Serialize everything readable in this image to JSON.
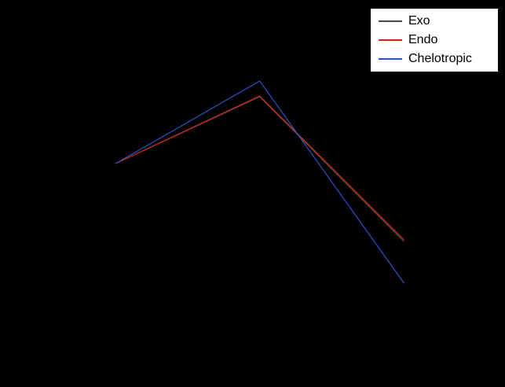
{
  "window": {
    "background": "#000000"
  },
  "legend": {
    "background": "#ffffff",
    "border_color": "#000000",
    "text_color": "#000000",
    "position": "top-right"
  },
  "chart_data": {
    "type": "line",
    "title": "",
    "xlabel": "",
    "ylabel": "",
    "grid": false,
    "axes_visible": false,
    "background": "#000000",
    "legend_position": "top-right",
    "x": [
      0,
      1,
      2
    ],
    "xlim": [
      -0.8,
      2.7
    ],
    "ylim": [
      -28.4,
      20.8
    ],
    "series": [
      {
        "name": "Exo",
        "color": "#4a4a4a",
        "values": [
          0,
          8.5,
          -9.9
        ]
      },
      {
        "name": "Endo",
        "color": "#d02818",
        "values": [
          0,
          8.6,
          -9.7
        ]
      },
      {
        "name": "Chelotropic",
        "color": "#2a55c8",
        "values": [
          0,
          10.5,
          -15.2
        ]
      }
    ]
  }
}
